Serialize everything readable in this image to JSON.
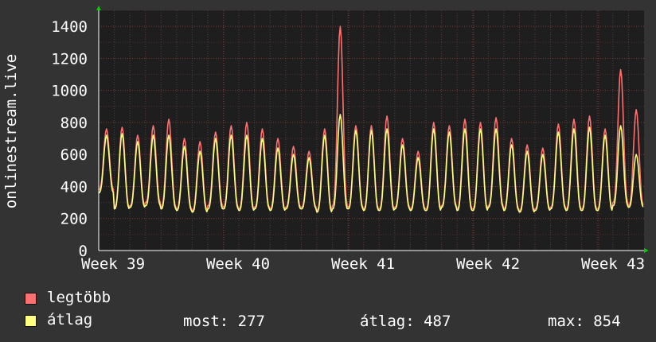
{
  "chart_data": {
    "type": "line",
    "ylabel": "onlinestream.live",
    "ylim": [
      0,
      1500
    ],
    "yticks": [
      0,
      200,
      400,
      600,
      800,
      1000,
      1200,
      1400
    ],
    "xticks": [
      "Week 39",
      "Week 40",
      "Week 41",
      "Week 42",
      "Week 43"
    ],
    "grid": true,
    "days": 35,
    "series": [
      {
        "name": "legtöbb",
        "color": "#ff7070",
        "daily_peak": [
          760,
          770,
          720,
          780,
          820,
          700,
          680,
          740,
          780,
          800,
          760,
          700,
          650,
          620,
          760,
          1400,
          780,
          780,
          840,
          700,
          620,
          800,
          780,
          820,
          800,
          830,
          700,
          660,
          640,
          790,
          820,
          840,
          760,
          1130,
          880
        ],
        "daily_low": [
          380,
          270,
          280,
          300,
          270,
          260,
          250,
          280,
          270,
          260,
          270,
          260,
          270,
          270,
          250,
          280,
          270,
          260,
          260,
          270,
          260,
          260,
          280,
          260,
          260,
          280,
          260,
          250,
          260,
          270,
          260,
          260,
          260,
          300,
          280
        ]
      },
      {
        "name": "átlag",
        "color": "#ffff80",
        "daily_peak": [
          720,
          730,
          680,
          720,
          720,
          650,
          620,
          700,
          720,
          720,
          700,
          640,
          600,
          580,
          720,
          850,
          750,
          750,
          760,
          660,
          580,
          760,
          740,
          760,
          760,
          760,
          660,
          620,
          600,
          740,
          760,
          770,
          720,
          780,
          600
        ],
        "daily_low": [
          360,
          260,
          270,
          280,
          260,
          250,
          240,
          260,
          260,
          250,
          260,
          250,
          260,
          260,
          240,
          260,
          260,
          250,
          250,
          260,
          250,
          250,
          270,
          250,
          250,
          270,
          250,
          240,
          250,
          260,
          250,
          250,
          250,
          280,
          270
        ]
      }
    ]
  },
  "legend": [
    {
      "label": "legtöbb",
      "color": "#ff7070"
    },
    {
      "label": "átlag",
      "color": "#ffff80"
    }
  ],
  "stats": {
    "most": "most: 277",
    "atlag": "átlag: 487",
    "max": "max: 854"
  }
}
